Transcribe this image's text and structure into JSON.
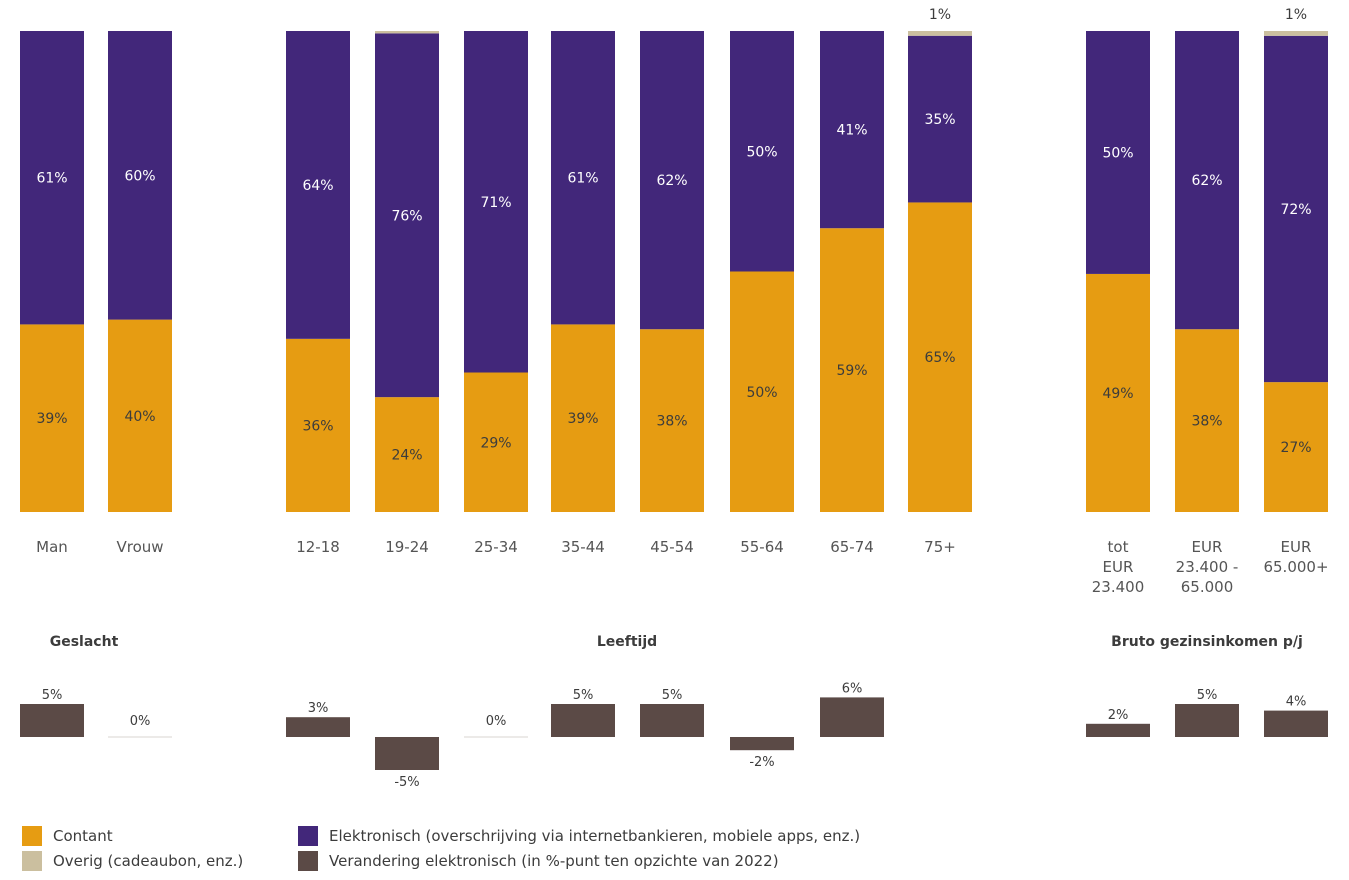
{
  "chart_data": {
    "type": "bar",
    "stacked": true,
    "ylim": [
      0,
      100
    ],
    "groups": [
      {
        "name": "Geslacht",
        "categories": [
          [
            "Man"
          ],
          [
            "Vrouw"
          ]
        ],
        "contant": [
          39,
          40
        ],
        "elektronisch": [
          61,
          60
        ],
        "overig": [
          0,
          0
        ],
        "verandering": [
          5,
          0
        ]
      },
      {
        "name": "Leeftijd",
        "categories": [
          [
            "12-18"
          ],
          [
            "19-24"
          ],
          [
            "25-34"
          ],
          [
            "35-44"
          ],
          [
            "45-54"
          ],
          [
            "55-64"
          ],
          [
            "65-74"
          ],
          [
            "75+"
          ]
        ],
        "contant": [
          36,
          24,
          29,
          39,
          38,
          50,
          59,
          65
        ],
        "elektronisch": [
          64,
          76,
          71,
          61,
          62,
          50,
          41,
          35
        ],
        "overig": [
          0,
          0.5,
          0,
          0,
          0,
          0,
          0,
          1
        ],
        "verandering": [
          3,
          -5,
          0,
          5,
          5,
          -2,
          6,
          null
        ]
      },
      {
        "name": "Bruto gezinsinkomen p/j",
        "categories": [
          [
            "tot",
            "EUR",
            "23.400"
          ],
          [
            "EUR",
            "23.400 -",
            "65.000"
          ],
          [
            "EUR",
            "65.000+"
          ]
        ],
        "contant": [
          49,
          38,
          27
        ],
        "elektronisch": [
          50,
          62,
          72
        ],
        "overig": [
          0,
          0,
          1
        ],
        "verandering": [
          2,
          5,
          4
        ]
      }
    ],
    "legend": [
      {
        "key": "contant",
        "label": "Contant",
        "color": "#e69c12"
      },
      {
        "key": "overig",
        "label": "Overig (cadeaubon, enz.)",
        "color": "#cbbf9f"
      },
      {
        "key": "elektronisch",
        "label": "Elektronisch (overschrijving via internetbankieren, mobiele apps, enz.)",
        "color": "#42277a"
      },
      {
        "key": "verandering",
        "label": "Verandering elektronisch (in %-punt ten opzichte van 2022)",
        "color": "#5b4a46"
      }
    ]
  }
}
